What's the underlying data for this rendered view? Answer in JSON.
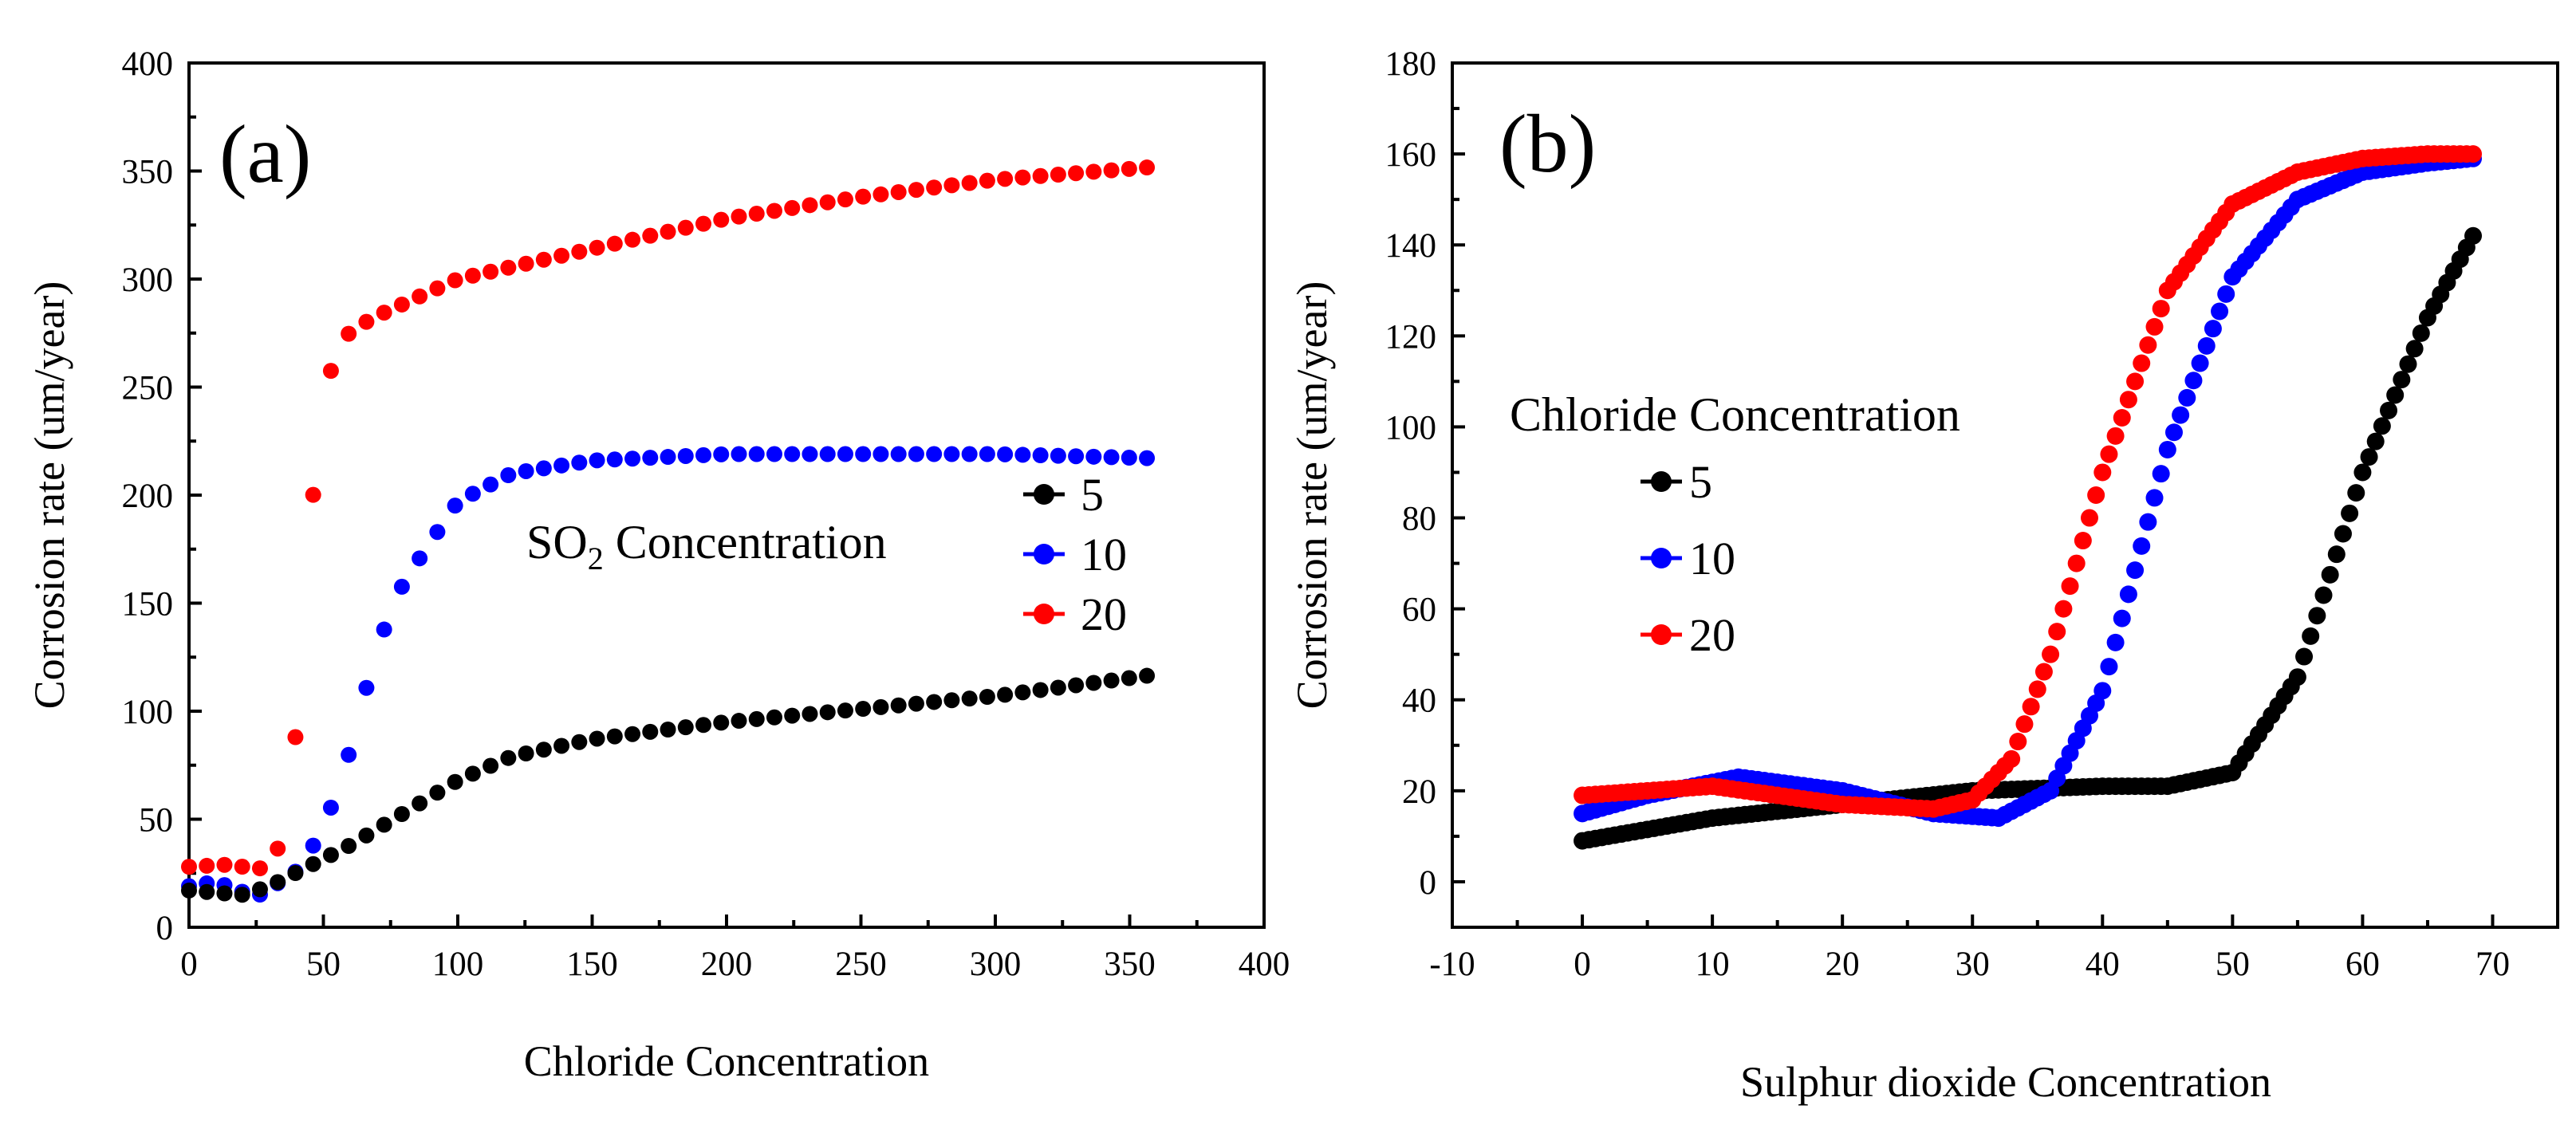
{
  "chart_data": [
    {
      "type": "scatter",
      "panel_label": "(a)",
      "xlabel": "Chloride Concentration",
      "ylabel": "Corrosion rate (um/year)",
      "xlim": [
        0,
        400
      ],
      "ylim": [
        0,
        400
      ],
      "xticks": [
        0,
        50,
        100,
        150,
        200,
        250,
        300,
        350,
        400
      ],
      "yticks": [
        0,
        50,
        100,
        150,
        200,
        250,
        300,
        350,
        400
      ],
      "grid": false,
      "legend": {
        "title_main": "SO",
        "title_sub": "2",
        "title_rest": " Concentration",
        "placement": "middle-right"
      },
      "series": [
        {
          "name": "5",
          "color": "#000000",
          "x": [
            0,
            20,
            30,
            60,
            100,
            120,
            150,
            200,
            250,
            300,
            360
          ],
          "y": [
            17,
            15,
            19,
            38,
            68,
            79,
            87,
            95,
            101,
            107,
            117
          ]
        },
        {
          "name": "10",
          "color": "#0000ff",
          "x": [
            0,
            10,
            25,
            40,
            50,
            60,
            70,
            80,
            100,
            120,
            150,
            200,
            250,
            300,
            360
          ],
          "y": [
            19,
            21,
            14,
            26,
            45,
            82,
            130,
            160,
            197,
            210,
            216,
            219,
            219,
            219,
            217
          ]
        },
        {
          "name": "20",
          "color": "#ff0000",
          "x": [
            0,
            15,
            25,
            30,
            35,
            40,
            45,
            50,
            55,
            60,
            70,
            100,
            150,
            200,
            250,
            300,
            360
          ],
          "y": [
            28,
            29,
            27,
            28,
            42,
            92,
            185,
            248,
            265,
            276,
            283,
            300,
            314,
            328,
            338,
            346,
            352
          ]
        }
      ]
    },
    {
      "type": "scatter",
      "panel_label": "(b)",
      "xlabel": "Sulphur dioxide Concentration",
      "ylabel": "Corrosion rate (um/year)",
      "xlim": [
        -10,
        75
      ],
      "ylim": [
        -10,
        180
      ],
      "xticks": [
        -10,
        0,
        10,
        20,
        30,
        40,
        50,
        60,
        70
      ],
      "yticks": [
        0,
        20,
        40,
        60,
        80,
        100,
        120,
        140,
        160,
        180
      ],
      "grid": false,
      "legend": {
        "title": "Chloride Concentration",
        "placement": "middle-left"
      },
      "series": [
        {
          "name": "5",
          "color": "#000000",
          "x": [
            0,
            10,
            20,
            30,
            40,
            45,
            50,
            55,
            60,
            65,
            68.5
          ],
          "y": [
            9,
            14,
            17,
            20,
            21,
            21,
            24,
            45,
            90,
            124,
            142
          ]
        },
        {
          "name": "10",
          "color": "#0000ff",
          "x": [
            0,
            5,
            12,
            20,
            27,
            32,
            36,
            40,
            45,
            50,
            55,
            60,
            65,
            68.5
          ],
          "y": [
            15,
            19,
            23,
            20,
            15,
            14,
            20,
            42,
            95,
            133,
            150,
            156,
            158,
            159
          ]
        },
        {
          "name": "20",
          "color": "#ff0000",
          "x": [
            0,
            10,
            20,
            27,
            30,
            33,
            36,
            40,
            45,
            50,
            55,
            60,
            65,
            68.5
          ],
          "y": [
            19,
            21,
            17,
            16,
            18,
            27,
            50,
            90,
            130,
            149,
            156,
            159,
            160,
            160
          ]
        }
      ]
    }
  ]
}
